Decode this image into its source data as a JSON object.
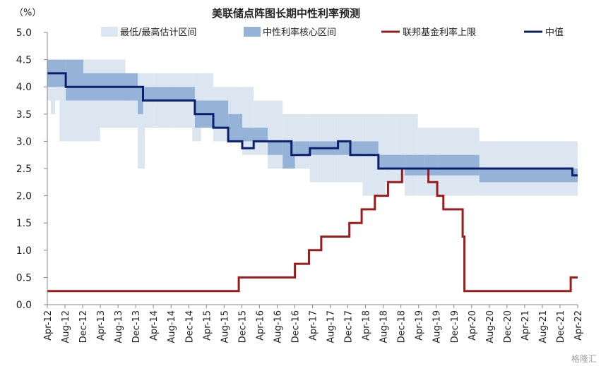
{
  "chart_data": {
    "type": "line",
    "title": "美联储点阵图长期中性利率预测",
    "y_unit": "（%）",
    "ylim": [
      0.0,
      5.0
    ],
    "y_ticks": [
      "0.0",
      "0.5",
      "1.0",
      "1.5",
      "2.0",
      "2.5",
      "3.0",
      "3.5",
      "4.0",
      "4.5",
      "5.0"
    ],
    "x_ticks": [
      "Apr-12",
      "Aug-12",
      "Dec-12",
      "Apr-13",
      "Aug-13",
      "Dec-13",
      "Apr-14",
      "Aug-14",
      "Dec-14",
      "Apr-15",
      "Aug-15",
      "Dec-15",
      "Apr-16",
      "Aug-16",
      "Dec-16",
      "Apr-17",
      "Aug-17",
      "Dec-17",
      "Apr-18",
      "Aug-18",
      "Dec-18",
      "Apr-19",
      "Aug-19",
      "Dec-19",
      "Apr-20",
      "Aug-20",
      "Dec-20",
      "Apr-21",
      "Aug-21",
      "Dec-21",
      "Apr-22"
    ],
    "legend": [
      {
        "label": "最低/最高估计区间",
        "kind": "full-range",
        "color": "#dce6f1"
      },
      {
        "label": "中性利率核心区间",
        "kind": "core-range",
        "color": "#95b3d7"
      },
      {
        "label": "联邦基金利率上限",
        "kind": "line",
        "color": "#9b1c1c"
      },
      {
        "label": "中值",
        "kind": "line",
        "color": "#0b1f6e"
      }
    ],
    "series": [
      {
        "name": "中值",
        "points": [
          [
            0,
            4.25
          ],
          [
            1.05,
            4.25
          ],
          [
            1.05,
            4.0
          ],
          [
            5.45,
            4.0
          ],
          [
            5.45,
            3.75
          ],
          [
            8.4,
            3.75
          ],
          [
            8.4,
            3.5
          ],
          [
            9.45,
            3.5
          ],
          [
            9.45,
            3.25
          ],
          [
            10.3,
            3.25
          ],
          [
            10.3,
            3.0
          ],
          [
            11.1,
            3.0
          ],
          [
            11.1,
            2.875
          ],
          [
            11.75,
            2.875
          ],
          [
            11.75,
            3.0
          ],
          [
            13.9,
            3.0
          ],
          [
            13.9,
            2.75
          ],
          [
            14.95,
            2.75
          ],
          [
            14.95,
            2.875
          ],
          [
            16.55,
            2.875
          ],
          [
            16.55,
            3.0
          ],
          [
            17.25,
            3.0
          ],
          [
            17.25,
            2.75
          ],
          [
            18.85,
            2.75
          ],
          [
            18.85,
            2.5
          ],
          [
            29.9,
            2.5
          ],
          [
            29.9,
            2.375
          ],
          [
            30.2,
            2.375
          ]
        ]
      },
      {
        "name": "联邦基金利率上限",
        "points": [
          [
            0,
            0.25
          ],
          [
            10.9,
            0.25
          ],
          [
            10.9,
            0.5
          ],
          [
            14.1,
            0.5
          ],
          [
            14.1,
            0.75
          ],
          [
            14.9,
            0.75
          ],
          [
            14.9,
            1.0
          ],
          [
            15.6,
            1.0
          ],
          [
            15.6,
            1.25
          ],
          [
            17.2,
            1.25
          ],
          [
            17.2,
            1.5
          ],
          [
            17.9,
            1.5
          ],
          [
            17.9,
            1.75
          ],
          [
            18.65,
            1.75
          ],
          [
            18.65,
            2.0
          ],
          [
            19.4,
            2.0
          ],
          [
            19.4,
            2.25
          ],
          [
            20.2,
            2.25
          ],
          [
            20.2,
            2.5
          ],
          [
            21.7,
            2.5
          ],
          [
            21.7,
            2.25
          ],
          [
            22.2,
            2.25
          ],
          [
            22.2,
            2.0
          ],
          [
            22.55,
            2.0
          ],
          [
            22.55,
            1.75
          ],
          [
            23.65,
            1.75
          ],
          [
            23.65,
            1.25
          ],
          [
            23.75,
            1.25
          ],
          [
            23.75,
            0.25
          ],
          [
            29.8,
            0.25
          ],
          [
            29.8,
            0.5
          ],
          [
            30.2,
            0.5
          ]
        ]
      }
    ],
    "full_range_steps": [
      [
        0,
        4.5,
        3.75
      ],
      [
        0.2,
        4.5,
        3.5
      ],
      [
        0.45,
        4.5,
        3.75
      ],
      [
        0.7,
        4.5,
        3.0
      ],
      [
        2.05,
        4.5,
        3.0
      ],
      [
        2.55,
        4.5,
        3.0
      ],
      [
        3.0,
        4.5,
        3.25
      ],
      [
        4.45,
        4.25,
        3.25
      ],
      [
        5.15,
        4.25,
        2.5
      ],
      [
        5.55,
        4.25,
        3.25
      ],
      [
        6.1,
        4.25,
        3.25
      ],
      [
        7.1,
        4.25,
        3.25
      ],
      [
        8.25,
        4.25,
        3.0
      ],
      [
        8.75,
        4.25,
        3.25
      ],
      [
        9.45,
        4.0,
        3.0
      ],
      [
        11.1,
        4.0,
        2.75
      ],
      [
        11.75,
        3.75,
        2.75
      ],
      [
        12.55,
        3.75,
        2.5
      ],
      [
        13.4,
        3.5,
        2.5
      ],
      [
        14.95,
        3.5,
        2.25
      ],
      [
        15.6,
        3.5,
        2.25
      ],
      [
        16.55,
        3.5,
        2.25
      ],
      [
        17.95,
        3.5,
        2.0
      ],
      [
        19.25,
        3.5,
        2.25
      ],
      [
        19.85,
        3.5,
        2.25
      ],
      [
        20.35,
        3.5,
        2.0
      ],
      [
        21.1,
        3.25,
        2.0
      ],
      [
        22.2,
        3.25,
        2.0
      ],
      [
        24.6,
        3.0,
        2.0
      ],
      [
        30.2,
        3.0,
        2.0
      ]
    ],
    "core_range_steps": [
      [
        0,
        4.5,
        4.0
      ],
      [
        1.05,
        4.5,
        3.75
      ],
      [
        2.05,
        4.25,
        3.75
      ],
      [
        5.15,
        4.0,
        3.5
      ],
      [
        5.45,
        4.0,
        3.75
      ],
      [
        8.4,
        3.75,
        3.25
      ],
      [
        10.3,
        3.5,
        3.0
      ],
      [
        11.1,
        3.25,
        3.0
      ],
      [
        12.55,
        3.0,
        2.75
      ],
      [
        13.4,
        3.0,
        2.5
      ],
      [
        14.1,
        3.0,
        2.75
      ],
      [
        14.95,
        3.0,
        2.75
      ],
      [
        16.55,
        3.0,
        2.75
      ],
      [
        17.25,
        3.0,
        2.75
      ],
      [
        18.85,
        2.75,
        2.5
      ],
      [
        20.35,
        2.75,
        2.375
      ],
      [
        21.5,
        2.75,
        2.375
      ],
      [
        22.2,
        2.75,
        2.375
      ],
      [
        24.6,
        2.5,
        2.25
      ],
      [
        30.2,
        2.5,
        2.25
      ]
    ]
  },
  "watermark": "格隆汇"
}
